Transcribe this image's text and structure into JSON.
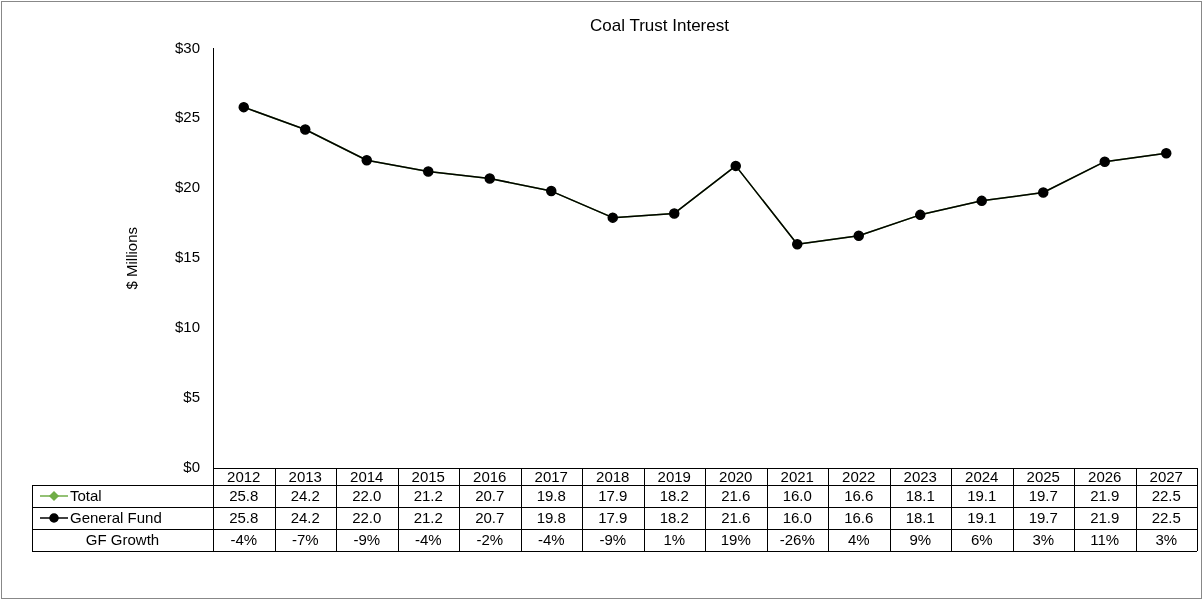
{
  "chart_data": {
    "type": "line",
    "title": "Coal Trust Interest",
    "ylabel": "$ Millions",
    "categories": [
      "2012",
      "2013",
      "2014",
      "2015",
      "2016",
      "2017",
      "2018",
      "2019",
      "2020",
      "2021",
      "2022",
      "2023",
      "2024",
      "2025",
      "2026",
      "2027"
    ],
    "series": [
      {
        "name": "Total",
        "color": "#70ad47",
        "marker": "diamond",
        "values": [
          25.8,
          24.2,
          22.0,
          21.2,
          20.7,
          19.8,
          17.9,
          18.2,
          21.6,
          16.0,
          16.6,
          18.1,
          19.1,
          19.7,
          21.9,
          22.5
        ],
        "value_labels": [
          "25.8",
          "24.2",
          "22.0",
          "21.2",
          "20.7",
          "19.8",
          "17.9",
          "18.2",
          "21.6",
          "16.0",
          "16.6",
          "18.1",
          "19.1",
          "19.7",
          "21.9",
          "22.5"
        ]
      },
      {
        "name": "General Fund",
        "color": "#000000",
        "marker": "circle",
        "values": [
          25.8,
          24.2,
          22.0,
          21.2,
          20.7,
          19.8,
          17.9,
          18.2,
          21.6,
          16.0,
          16.6,
          18.1,
          19.1,
          19.7,
          21.9,
          22.5
        ],
        "value_labels": [
          "25.8",
          "24.2",
          "22.0",
          "21.2",
          "20.7",
          "19.8",
          "17.9",
          "18.2",
          "21.6",
          "16.0",
          "16.6",
          "18.1",
          "19.1",
          "19.7",
          "21.9",
          "22.5"
        ]
      }
    ],
    "annotations": [
      "GF Growth",
      "-4%",
      "-7%",
      "-9%",
      "-4%",
      "-2%",
      "-4%",
      "-9%",
      "1%",
      "19%",
      "-26%",
      "4%",
      "9%",
      "6%",
      "3%",
      "11%",
      "3%"
    ],
    "ylim": [
      0,
      30
    ],
    "yticks": [
      {
        "value": 0,
        "label": "$0"
      },
      {
        "value": 5,
        "label": "$5"
      },
      {
        "value": 10,
        "label": "$10"
      },
      {
        "value": 15,
        "label": "$15"
      },
      {
        "value": 20,
        "label": "$20"
      },
      {
        "value": 25,
        "label": "$25"
      },
      {
        "value": 30,
        "label": "$30"
      }
    ],
    "grid": false,
    "legend": "bottom"
  }
}
